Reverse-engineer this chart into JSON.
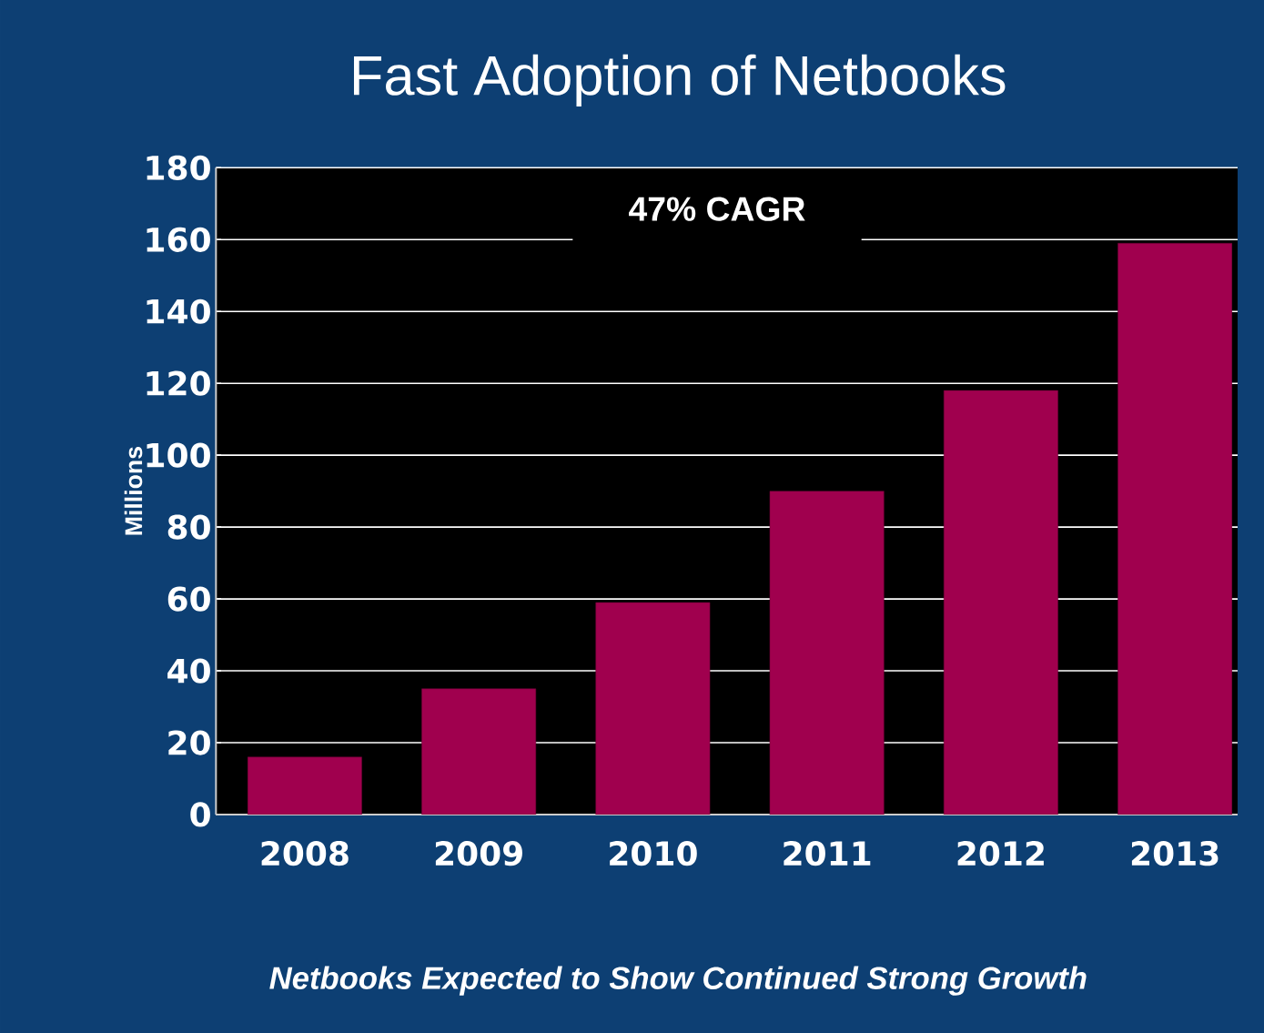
{
  "chart_data": {
    "type": "bar",
    "title": "Fast Adoption of Netbooks",
    "ylabel": "Millions",
    "categories": [
      "2008",
      "2009",
      "2010",
      "2011",
      "2012",
      "2013"
    ],
    "values": [
      16,
      35,
      59,
      90,
      118,
      159
    ],
    "color": "#a0004e",
    "ylim": [
      0,
      180
    ],
    "yticks": [
      0,
      20,
      40,
      60,
      80,
      100,
      120,
      140,
      160,
      180
    ],
    "grid": "y",
    "annotations": [
      "47% CAGR",
      "*Netbooks Expected to Show Continued Strong Growth*"
    ]
  }
}
